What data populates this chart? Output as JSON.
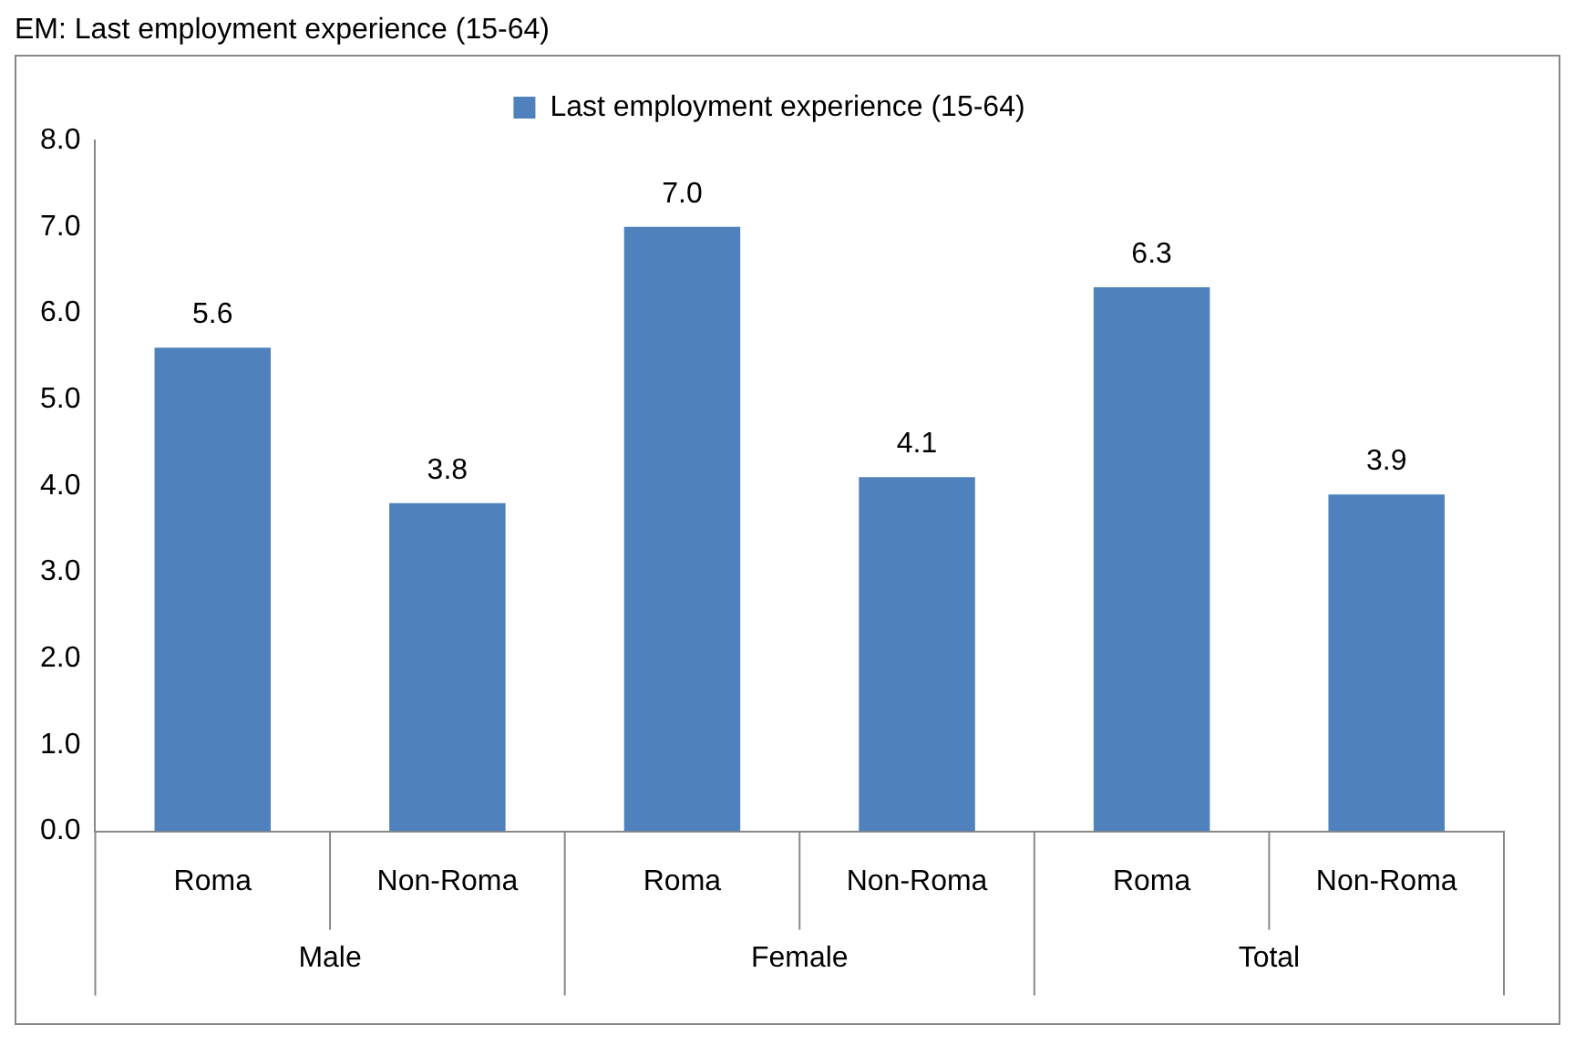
{
  "chart_data": {
    "type": "bar",
    "title": "EM: Last employment experience (15-64)",
    "categories": [
      "Roma",
      "Non-Roma",
      "Roma",
      "Non-Roma",
      "Roma",
      "Non-Roma"
    ],
    "series": [
      {
        "name": "Last employment experience (15-64)",
        "color": "#4f81bd",
        "values": [
          5.6,
          3.8,
          7.0,
          4.1,
          6.3,
          3.9
        ],
        "value_labels": [
          "5.6",
          "3.8",
          "7.0",
          "4.1",
          "6.3",
          "3.9"
        ]
      }
    ],
    "ylim": [
      0,
      8
    ],
    "yticks": [
      {
        "value": 0,
        "label": "0.0"
      },
      {
        "value": 1,
        "label": "1.0"
      },
      {
        "value": 2,
        "label": "2.0"
      },
      {
        "value": 3,
        "label": "3.0"
      },
      {
        "value": 4,
        "label": "4.0"
      },
      {
        "value": 5,
        "label": "5.0"
      },
      {
        "value": 6,
        "label": "6.0"
      },
      {
        "value": 7,
        "label": "7.0"
      },
      {
        "value": 8,
        "label": "8.0"
      }
    ],
    "annotations": [
      "Male",
      "Female",
      "Total"
    ],
    "legend": "top",
    "grid": false
  }
}
